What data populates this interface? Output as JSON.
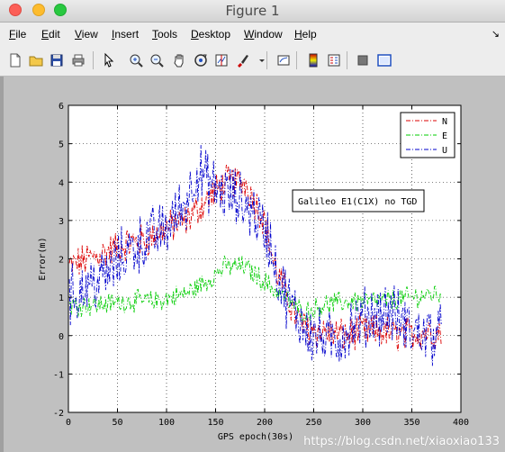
{
  "window": {
    "title": "Figure 1"
  },
  "menu": {
    "items": [
      {
        "label": "File",
        "u": "F",
        "rest": "ile",
        "x": 10
      },
      {
        "label": "Edit",
        "u": "E",
        "rest": "dit",
        "x": 46
      },
      {
        "label": "View",
        "u": "V",
        "rest": "iew",
        "x": 83
      },
      {
        "label": "Insert",
        "u": "I",
        "rest": "nsert",
        "x": 124
      },
      {
        "label": "Tools",
        "u": "T",
        "rest": "ools",
        "x": 169
      },
      {
        "label": "Desktop",
        "u": "D",
        "rest": "esktop",
        "x": 212
      },
      {
        "label": "Window",
        "u": "W",
        "rest": "indow",
        "x": 271
      },
      {
        "label": "Help",
        "u": "H",
        "rest": "elp",
        "x": 327
      }
    ],
    "dock_arrow": "↘"
  },
  "toolbar": {
    "icons": [
      "new-figure-icon",
      "open-file-icon",
      "save-icon",
      "print-icon",
      "select-arrow-icon",
      "zoom-in-icon",
      "zoom-out-icon",
      "pan-hand-icon",
      "rotate-3d-icon",
      "data-cursor-icon",
      "brush-icon",
      "link-plot-icon",
      "colorbar-icon",
      "legend-icon",
      "hide-plot-tools-icon",
      "show-plot-tools-icon"
    ]
  },
  "chart_data": {
    "type": "line",
    "title": "",
    "xlabel": "GPS epoch(30s)",
    "ylabel": "Error(m)",
    "xlim": [
      0,
      400
    ],
    "ylim": [
      -2,
      6
    ],
    "xticks": [
      0,
      50,
      100,
      150,
      200,
      250,
      300,
      350,
      400
    ],
    "yticks": [
      -2,
      -1,
      0,
      1,
      2,
      3,
      4,
      5,
      6
    ],
    "grid": true,
    "legend": {
      "position": "top-right",
      "entries": [
        "N",
        "E",
        "U"
      ]
    },
    "annotation": "Galileo E1(C1X) no TGD",
    "x_range": [
      1,
      380
    ],
    "series": [
      {
        "name": "N",
        "color": "#dd0000",
        "linestyle": "dash-dot",
        "trend_x": [
          0,
          20,
          40,
          60,
          80,
          100,
          120,
          140,
          160,
          180,
          200,
          210,
          220,
          230,
          240,
          260,
          280,
          300,
          320,
          340,
          360,
          380
        ],
        "trend_y": [
          1.8,
          2.0,
          2.2,
          2.4,
          2.5,
          2.8,
          3.0,
          3.5,
          4.0,
          4.0,
          3.0,
          1.8,
          1.2,
          0.6,
          0.2,
          0.1,
          0.0,
          0.1,
          0.1,
          0.0,
          0.1,
          0.1
        ],
        "noise": 0.4
      },
      {
        "name": "E",
        "color": "#00cc00",
        "linestyle": "dash-dot",
        "trend_x": [
          0,
          30,
          60,
          90,
          120,
          140,
          160,
          180,
          200,
          220,
          240,
          260,
          290,
          320,
          350,
          380
        ],
        "trend_y": [
          0.8,
          0.8,
          0.9,
          0.9,
          1.1,
          1.4,
          1.8,
          1.8,
          1.4,
          1.0,
          0.6,
          0.8,
          0.9,
          0.9,
          1.0,
          1.1
        ],
        "noise": 0.25
      },
      {
        "name": "U",
        "color": "#0000cc",
        "linestyle": "dash-dot",
        "trend_x": [
          0,
          20,
          40,
          60,
          80,
          100,
          120,
          130,
          150,
          170,
          190,
          205,
          215,
          230,
          250,
          270,
          290,
          310,
          330,
          350,
          380
        ],
        "trend_y": [
          1.0,
          1.3,
          1.6,
          2.2,
          2.5,
          2.8,
          3.5,
          4.3,
          3.8,
          3.6,
          3.2,
          2.5,
          1.4,
          0.6,
          0.0,
          -0.2,
          0.3,
          0.6,
          0.6,
          0.1,
          0.0
        ],
        "noise": 0.7
      }
    ]
  },
  "watermark": "https://blog.csdn.net/xiaoxiao133"
}
